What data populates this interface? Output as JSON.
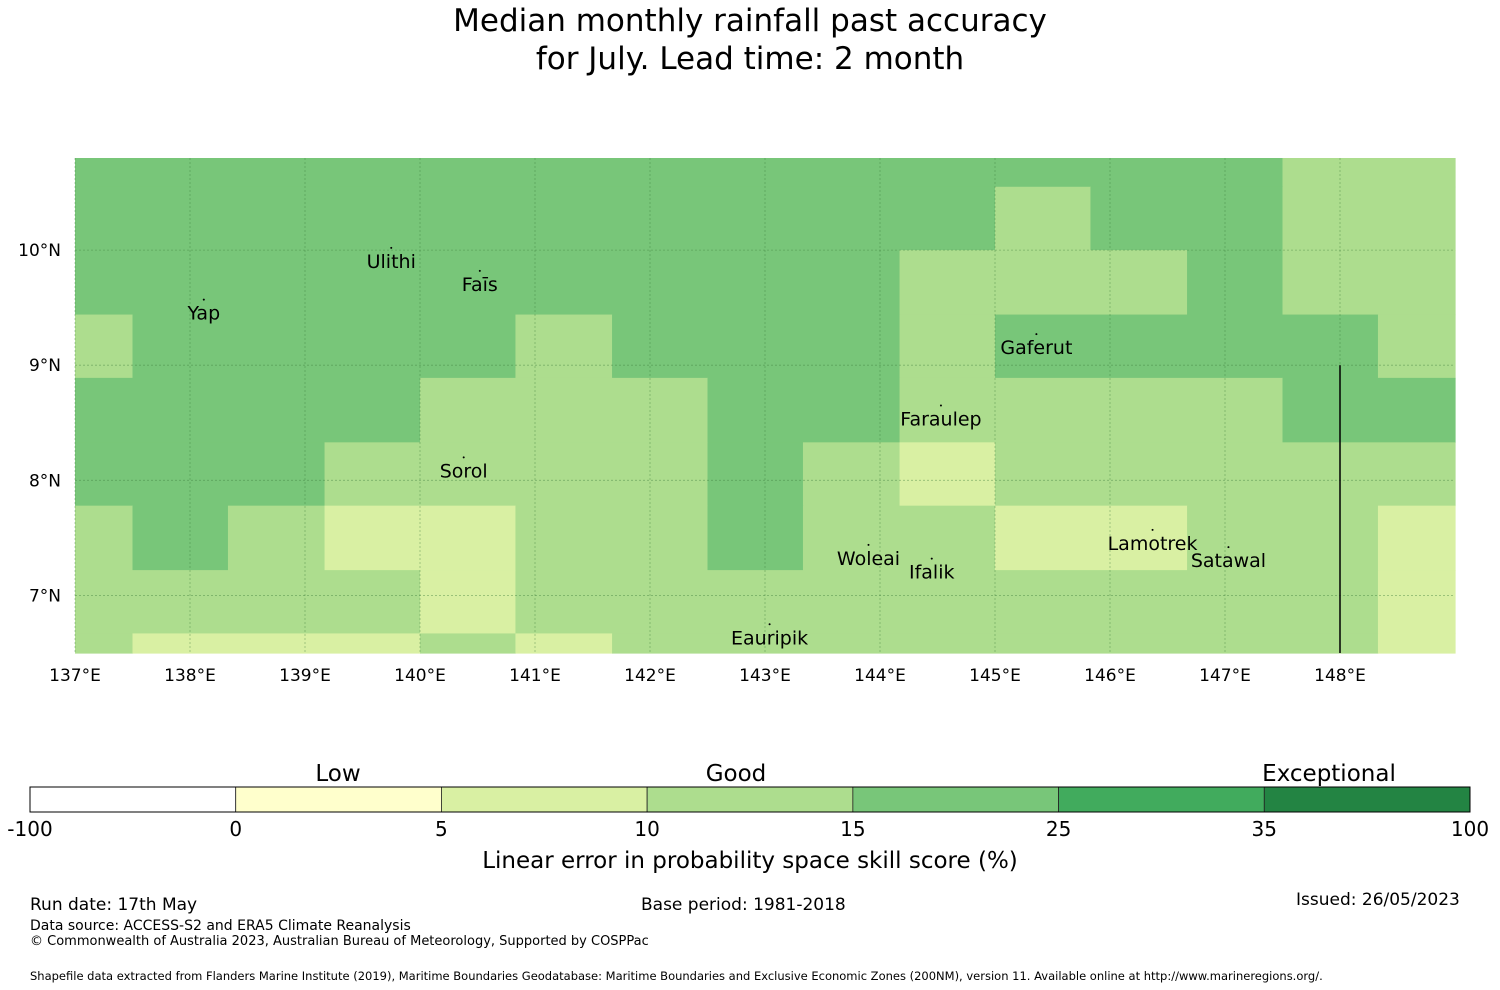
{
  "title": {
    "line1": "Median monthly rainfall past accuracy",
    "line2": "for July. Lead time: 2 month"
  },
  "map": {
    "lon_range": [
      137.0,
      149.0
    ],
    "lat_range": [
      6.5,
      10.8
    ],
    "lon_ticks": [
      "137°E",
      "138°E",
      "139°E",
      "140°E",
      "141°E",
      "142°E",
      "143°E",
      "144°E",
      "145°E",
      "146°E",
      "147°E",
      "148°E"
    ],
    "lat_ticks": [
      "10°N",
      "9°N",
      "8°N",
      "7°N"
    ],
    "grid": true,
    "category_colors": {
      "n10_15": "#addd8e",
      "n15_25": "#78c679",
      "n5_10": "#d9f0a3",
      "n0_5": "#ffffcc"
    },
    "rows": [
      {
        "lat_top": 10.8,
        "lat_bottom": 10.55,
        "cells": [
          [
            137.0,
            147.5,
            "n15_25"
          ],
          [
            147.5,
            149.0,
            "n10_15"
          ]
        ]
      },
      {
        "lat_top": 10.55,
        "lat_bottom": 10.0,
        "cells": [
          [
            137.0,
            145.0,
            "n15_25"
          ],
          [
            145.0,
            145.83,
            "n10_15"
          ],
          [
            145.83,
            147.5,
            "n15_25"
          ],
          [
            147.5,
            149.0,
            "n10_15"
          ]
        ]
      },
      {
        "lat_top": 10.0,
        "lat_bottom": 9.44,
        "cells": [
          [
            137.0,
            144.17,
            "n15_25"
          ],
          [
            144.17,
            146.67,
            "n10_15"
          ],
          [
            146.67,
            147.5,
            "n15_25"
          ],
          [
            147.5,
            149.0,
            "n10_15"
          ]
        ]
      },
      {
        "lat_top": 9.44,
        "lat_bottom": 8.89,
        "cells": [
          [
            137.0,
            137.5,
            "n10_15"
          ],
          [
            137.5,
            140.83,
            "n15_25"
          ],
          [
            140.83,
            141.67,
            "n10_15"
          ],
          [
            141.67,
            144.17,
            "n15_25"
          ],
          [
            144.17,
            145.0,
            "n10_15"
          ],
          [
            145.0,
            148.33,
            "n15_25"
          ],
          [
            148.33,
            149.0,
            "n10_15"
          ]
        ]
      },
      {
        "lat_top": 8.89,
        "lat_bottom": 8.33,
        "cells": [
          [
            137.0,
            140.0,
            "n15_25"
          ],
          [
            140.0,
            142.5,
            "n10_15"
          ],
          [
            142.5,
            144.17,
            "n15_25"
          ],
          [
            144.17,
            147.5,
            "n10_15"
          ],
          [
            147.5,
            149.0,
            "n15_25"
          ]
        ]
      },
      {
        "lat_top": 8.33,
        "lat_bottom": 7.78,
        "cells": [
          [
            137.0,
            139.17,
            "n15_25"
          ],
          [
            139.17,
            142.5,
            "n10_15"
          ],
          [
            142.5,
            143.33,
            "n15_25"
          ],
          [
            143.33,
            144.17,
            "n10_15"
          ],
          [
            144.17,
            145.0,
            "n5_10"
          ],
          [
            145.0,
            149.0,
            "n10_15"
          ]
        ]
      },
      {
        "lat_top": 7.78,
        "lat_bottom": 7.22,
        "cells": [
          [
            137.0,
            137.5,
            "n10_15"
          ],
          [
            137.5,
            138.33,
            "n15_25"
          ],
          [
            138.33,
            139.17,
            "n10_15"
          ],
          [
            139.17,
            140.83,
            "n5_10"
          ],
          [
            140.83,
            142.5,
            "n10_15"
          ],
          [
            142.5,
            143.33,
            "n15_25"
          ],
          [
            143.33,
            145.0,
            "n10_15"
          ],
          [
            145.0,
            146.67,
            "n5_10"
          ],
          [
            146.67,
            148.33,
            "n10_15"
          ],
          [
            148.33,
            149.0,
            "n5_10"
          ]
        ]
      },
      {
        "lat_top": 7.22,
        "lat_bottom": 6.67,
        "cells": [
          [
            137.0,
            140.0,
            "n10_15"
          ],
          [
            140.0,
            140.83,
            "n5_10"
          ],
          [
            140.83,
            148.33,
            "n10_15"
          ],
          [
            148.33,
            149.0,
            "n5_10"
          ]
        ]
      },
      {
        "lat_top": 6.67,
        "lat_bottom": 6.5,
        "cells": [
          [
            137.0,
            137.5,
            "n10_15"
          ],
          [
            137.5,
            140.0,
            "n5_10"
          ],
          [
            140.0,
            140.83,
            "n10_15"
          ],
          [
            140.83,
            141.67,
            "n5_10"
          ],
          [
            141.67,
            148.33,
            "n10_15"
          ],
          [
            148.33,
            149.0,
            "n5_10"
          ]
        ]
      }
    ],
    "boundary_line": {
      "lon": 148.0,
      "lat_from": 9.0,
      "lat_to": 6.5
    },
    "places": [
      {
        "name": "Yap",
        "lon": 138.12,
        "lat": 9.5
      },
      {
        "name": "Ulithi",
        "lon": 139.75,
        "lat": 9.95
      },
      {
        "name": "Faīs",
        "lon": 140.52,
        "lat": 9.75
      },
      {
        "name": "Gaferut",
        "lon": 145.36,
        "lat": 9.2
      },
      {
        "name": "Faraulep",
        "lon": 144.53,
        "lat": 8.58
      },
      {
        "name": "Sorol",
        "lon": 140.38,
        "lat": 8.13
      },
      {
        "name": "Woleai",
        "lon": 143.9,
        "lat": 7.37
      },
      {
        "name": "Ifalik",
        "lon": 144.45,
        "lat": 7.25
      },
      {
        "name": "Lamotrek",
        "lon": 146.37,
        "lat": 7.5
      },
      {
        "name": "Satawal",
        "lon": 147.03,
        "lat": 7.35
      },
      {
        "name": "Eauripik",
        "lon": 143.04,
        "lat": 6.68
      }
    ]
  },
  "legend": {
    "categories": [
      "Low",
      "Good",
      "Exceptional"
    ],
    "bins": [
      {
        "color": "#ffffff"
      },
      {
        "color": "#ffffcc"
      },
      {
        "color": "#d9f0a3"
      },
      {
        "color": "#addd8e"
      },
      {
        "color": "#78c679"
      },
      {
        "color": "#41ab5d"
      },
      {
        "color": "#238443"
      }
    ],
    "tick_labels": [
      "-100",
      "0",
      "5",
      "10",
      "15",
      "25",
      "35",
      "100"
    ],
    "axis_label": "Linear error in probability space skill score (%)"
  },
  "footer": {
    "run_date": "Run date: 17th May",
    "base_period": "Base period: 1981-2018",
    "issued": "Issued: 26/05/2023",
    "data_source": "Data source: ACCESS-S2 and ERA5 Climate Reanalysis",
    "copyright": "© Commonwealth of Australia 2023, Australian Bureau of Meteorology, Supported by COSPPac",
    "shapefile": "Shapefile data extracted from Flanders Marine Institute (2019), Maritime Boundaries Geodatabase: Maritime Boundaries and Exclusive Economic Zones (200NM), version 11. Available online at http://www.marineregions.org/."
  }
}
